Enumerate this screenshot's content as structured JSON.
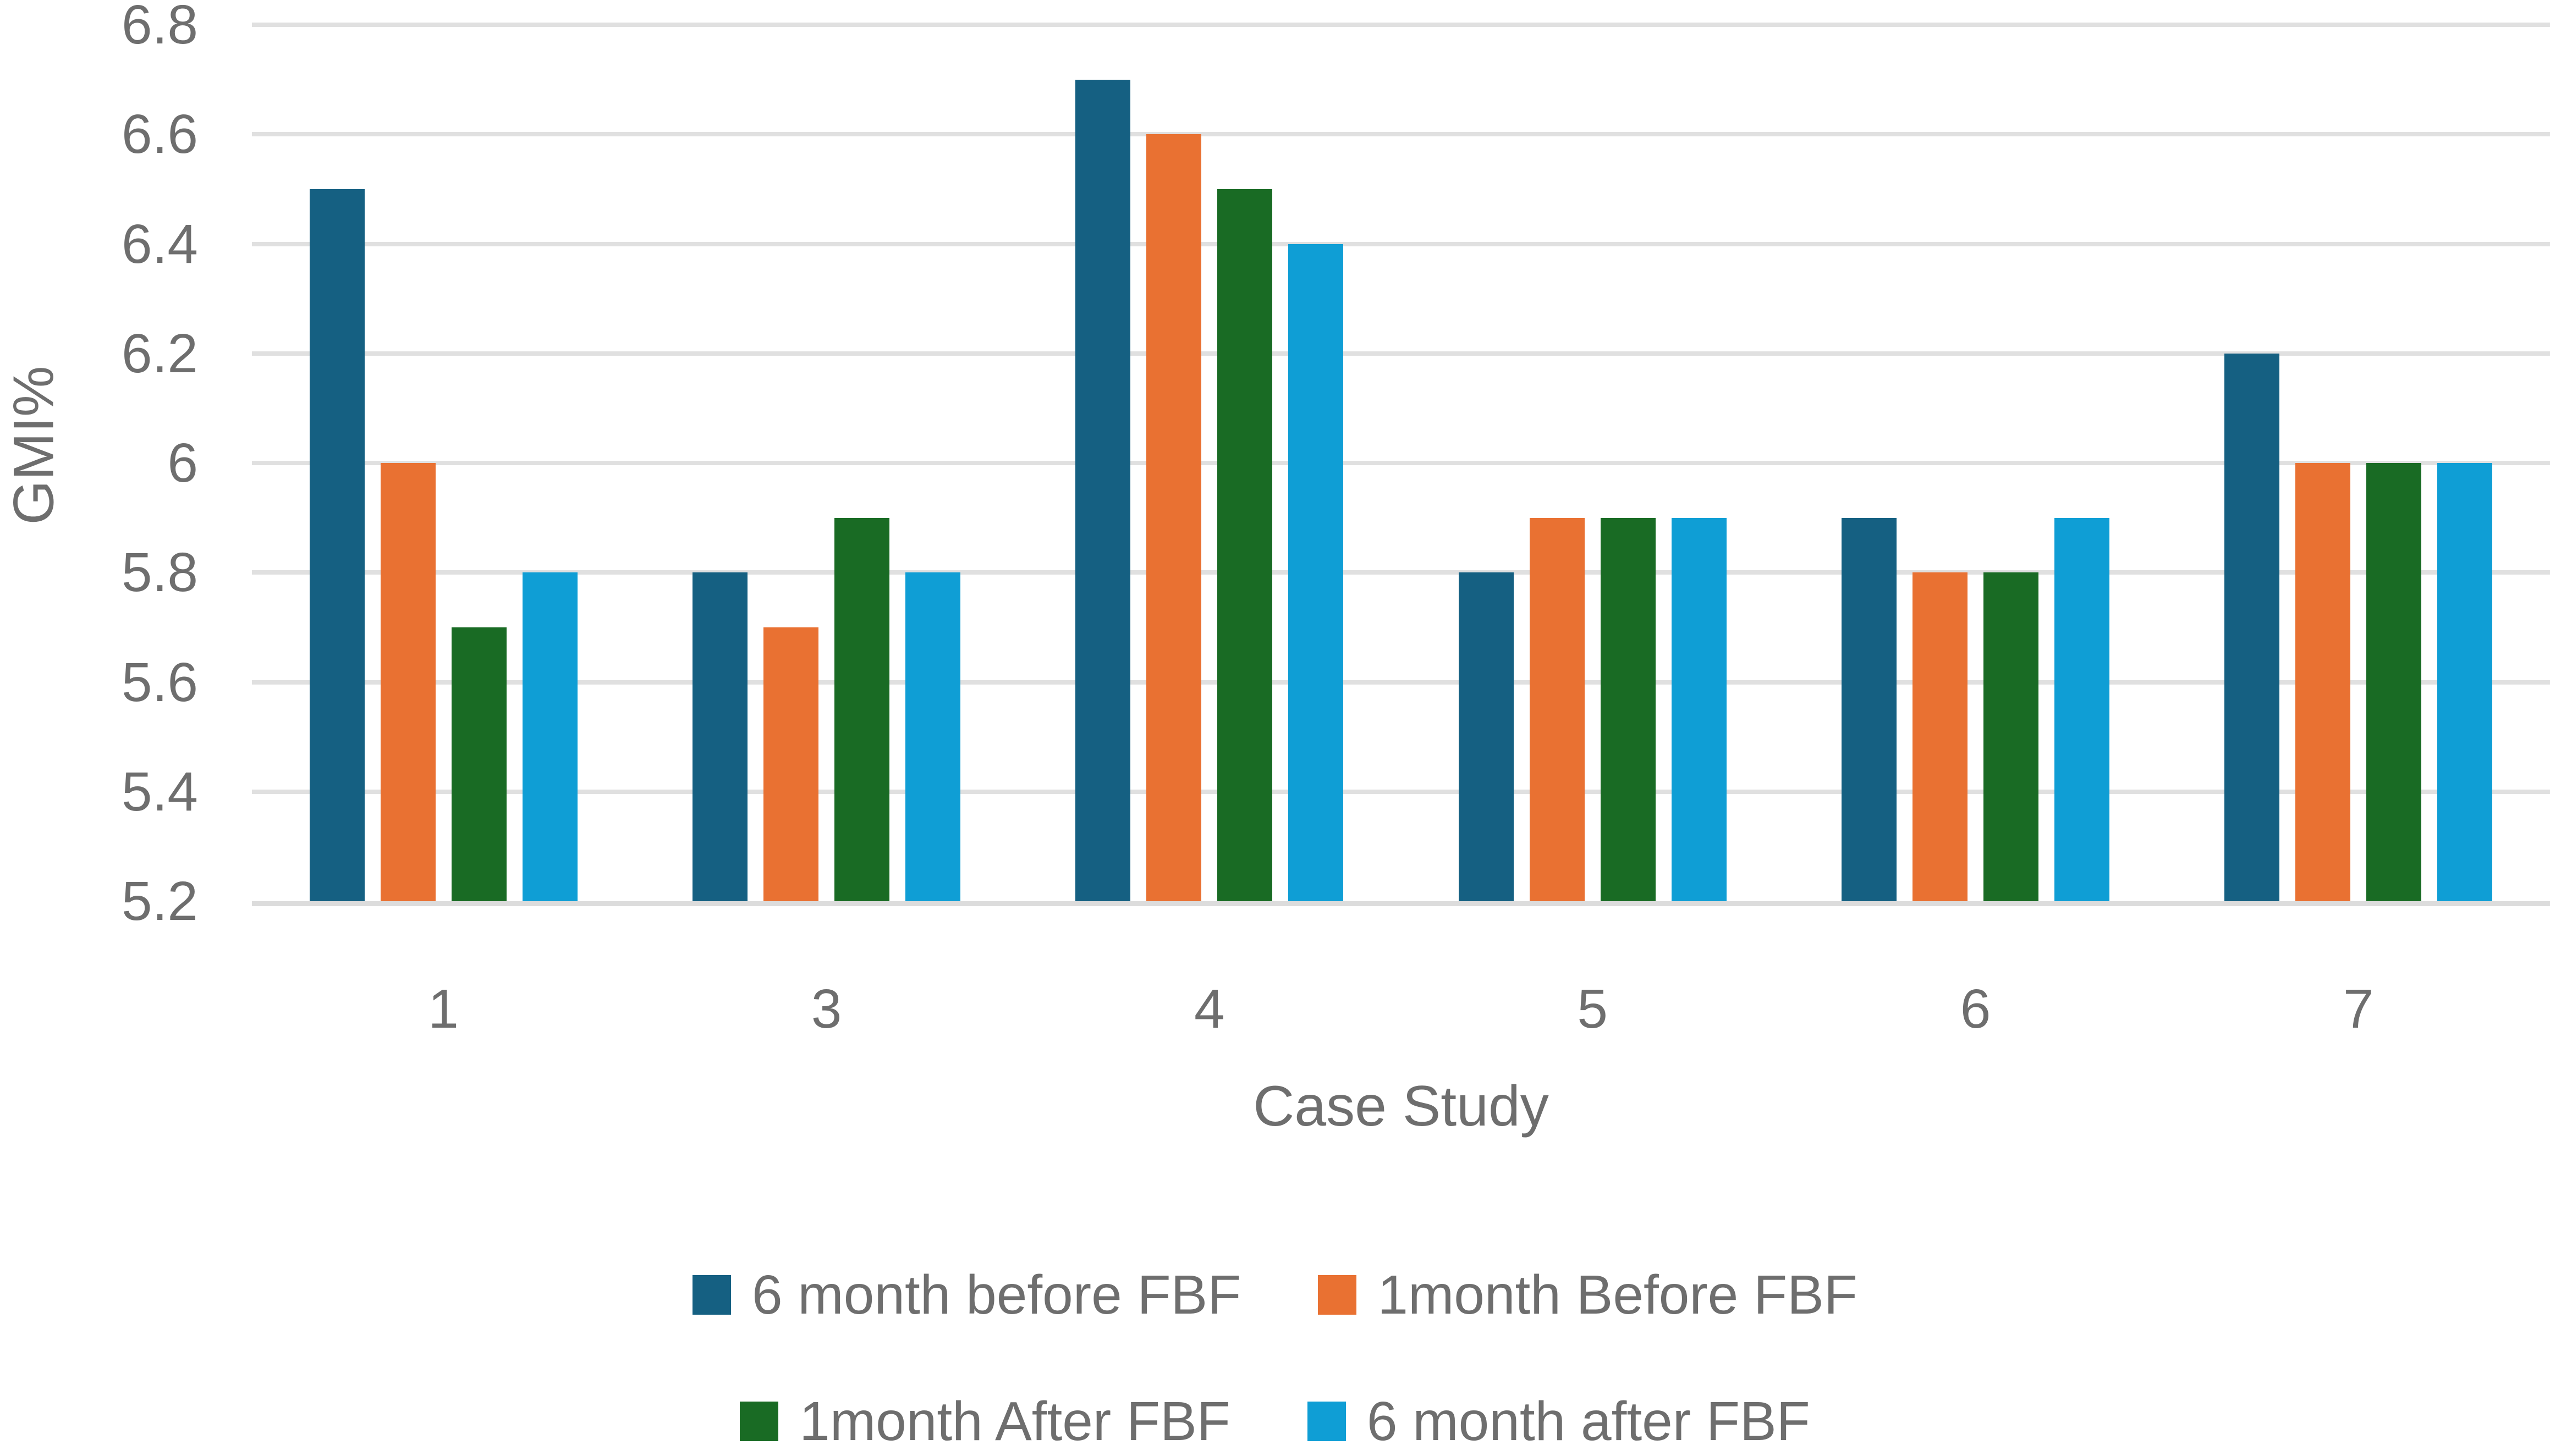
{
  "chart_data": {
    "type": "bar",
    "title": "",
    "categories": [
      "1",
      "3",
      "4",
      "5",
      "6",
      "7"
    ],
    "series": [
      {
        "name": "6 month before FBF",
        "color": "#156082",
        "values": [
          6.5,
          5.8,
          6.7,
          5.8,
          5.9,
          6.2
        ]
      },
      {
        "name": "1month Before FBF",
        "color": "#E97132",
        "values": [
          6.0,
          5.7,
          6.6,
          5.9,
          5.8,
          6.0
        ]
      },
      {
        "name": "1month After FBF",
        "color": "#196B24",
        "values": [
          5.7,
          5.9,
          6.5,
          5.9,
          5.8,
          6.0
        ]
      },
      {
        "name": "6 month after FBF",
        "color": "#0F9ED5",
        "values": [
          5.8,
          5.8,
          6.4,
          5.9,
          5.9,
          6.0
        ]
      }
    ],
    "xlabel": "Case Study",
    "ylabel": "GMI%",
    "ylim": [
      5.2,
      6.8
    ],
    "y_tick_step": 0.2,
    "y_tick_labels": [
      "6.8",
      "6.6",
      "6.4",
      "6.2",
      "6",
      "5.8",
      "5.6",
      "5.4",
      "5.2"
    ],
    "grid": "horizontal-only",
    "legend_position": "bottom",
    "legend_rows": [
      [
        0,
        1
      ],
      [
        2,
        3
      ]
    ]
  },
  "style": {
    "text_color": "#6E6E6E",
    "gridline_color": "#E0E0E0",
    "axis_line_color": "#DCDCDC",
    "plot_background": "#FFFFFF"
  }
}
